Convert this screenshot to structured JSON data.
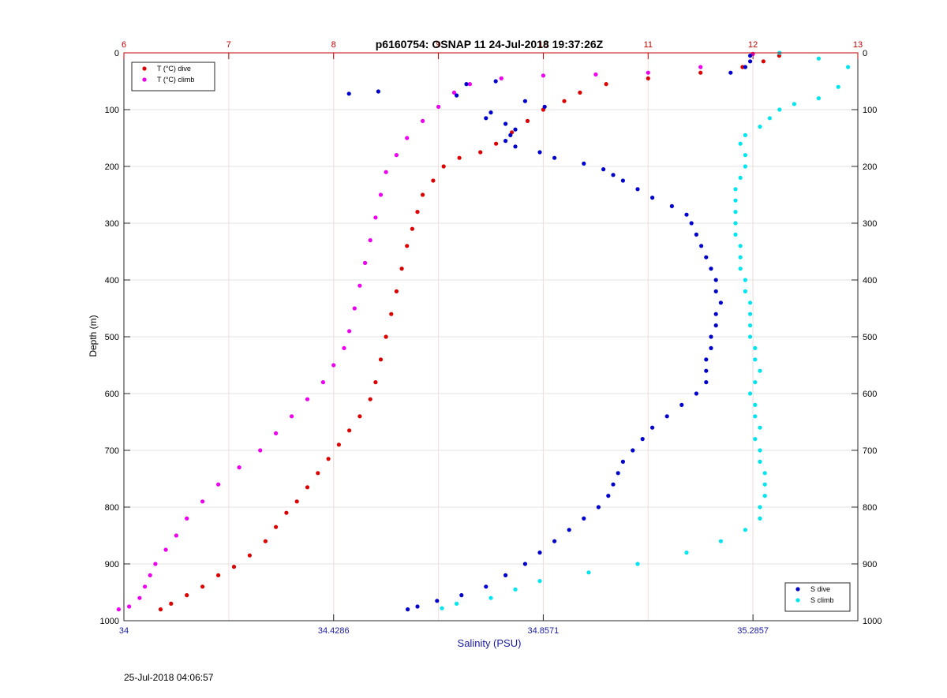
{
  "timestamp": "25-Jul-2018 04:06:57",
  "chart_data": {
    "type": "scatter",
    "title": "p6160754: OSNAP 11 24-Jul-2018 19:37:26Z",
    "xlabel": "Salinity (PSU)",
    "ylabel": "Depth (m)",
    "x_axis": {
      "ylim_note": "bottom",
      "lim": [
        34,
        35.5
      ],
      "ticks": [
        34,
        34.4286,
        34.8571,
        35.2857
      ],
      "tick_labels": [
        "34",
        "34.4286",
        "34.8571",
        "35.2857"
      ],
      "color": "#1a1aa0"
    },
    "x2_axis": {
      "lim": [
        6,
        13
      ],
      "ticks": [
        6,
        7,
        8,
        9,
        10,
        11,
        12,
        13
      ],
      "tick_labels": [
        "6",
        "7",
        "8",
        "9",
        "10",
        "11",
        "12",
        "13"
      ],
      "color": "#c00000"
    },
    "y_axis": {
      "lim": [
        0,
        1000
      ],
      "reversed": true,
      "ticks": [
        0,
        100,
        200,
        300,
        400,
        500,
        600,
        700,
        800,
        900,
        1000
      ],
      "tick_labels": [
        "0",
        "100",
        "200",
        "300",
        "400",
        "500",
        "600",
        "700",
        "800",
        "900",
        "1000"
      ]
    },
    "grid": true,
    "legends": [
      {
        "placement": "top-left",
        "entries": [
          {
            "label": "T (°C) dive",
            "color": "#dd0000"
          },
          {
            "label": "T (°C) climb",
            "color": "#ee00ee"
          }
        ]
      },
      {
        "placement": "bottom-right",
        "entries": [
          {
            "label": "S dive",
            "color": "#0000cc"
          },
          {
            "label": "S climb",
            "color": "#00e5ee"
          }
        ]
      }
    ],
    "series": [
      {
        "name": "T (°C) dive",
        "axis": "top",
        "color": "#dd0000",
        "points": [
          [
            12.25,
            5
          ],
          [
            12.1,
            15
          ],
          [
            11.9,
            25
          ],
          [
            11.5,
            35
          ],
          [
            11.0,
            45
          ],
          [
            10.6,
            55
          ],
          [
            10.35,
            70
          ],
          [
            10.2,
            85
          ],
          [
            10.0,
            100
          ],
          [
            9.85,
            120
          ],
          [
            9.7,
            140
          ],
          [
            9.55,
            160
          ],
          [
            9.4,
            175
          ],
          [
            9.2,
            185
          ],
          [
            9.05,
            200
          ],
          [
            8.95,
            225
          ],
          [
            8.85,
            250
          ],
          [
            8.8,
            280
          ],
          [
            8.75,
            310
          ],
          [
            8.7,
            340
          ],
          [
            8.65,
            380
          ],
          [
            8.6,
            420
          ],
          [
            8.55,
            460
          ],
          [
            8.5,
            500
          ],
          [
            8.45,
            540
          ],
          [
            8.4,
            580
          ],
          [
            8.35,
            610
          ],
          [
            8.25,
            640
          ],
          [
            8.15,
            665
          ],
          [
            8.05,
            690
          ],
          [
            7.95,
            715
          ],
          [
            7.85,
            740
          ],
          [
            7.75,
            765
          ],
          [
            7.65,
            790
          ],
          [
            7.55,
            810
          ],
          [
            7.45,
            835
          ],
          [
            7.35,
            860
          ],
          [
            7.2,
            885
          ],
          [
            7.05,
            905
          ],
          [
            6.9,
            920
          ],
          [
            6.75,
            940
          ],
          [
            6.6,
            955
          ],
          [
            6.45,
            970
          ],
          [
            6.35,
            980
          ]
        ]
      },
      {
        "name": "T (°C) climb",
        "axis": "top",
        "color": "#ee00ee",
        "points": [
          [
            12.0,
            2
          ],
          [
            11.5,
            25
          ],
          [
            11.0,
            35
          ],
          [
            10.5,
            38
          ],
          [
            10.0,
            40
          ],
          [
            9.6,
            45
          ],
          [
            9.3,
            55
          ],
          [
            9.15,
            70
          ],
          [
            9.0,
            95
          ],
          [
            8.85,
            120
          ],
          [
            8.7,
            150
          ],
          [
            8.6,
            180
          ],
          [
            8.5,
            210
          ],
          [
            8.45,
            250
          ],
          [
            8.4,
            290
          ],
          [
            8.35,
            330
          ],
          [
            8.3,
            370
          ],
          [
            8.25,
            410
          ],
          [
            8.2,
            450
          ],
          [
            8.15,
            490
          ],
          [
            8.1,
            520
          ],
          [
            8.0,
            550
          ],
          [
            7.9,
            580
          ],
          [
            7.75,
            610
          ],
          [
            7.6,
            640
          ],
          [
            7.45,
            670
          ],
          [
            7.3,
            700
          ],
          [
            7.1,
            730
          ],
          [
            6.9,
            760
          ],
          [
            6.75,
            790
          ],
          [
            6.6,
            820
          ],
          [
            6.5,
            850
          ],
          [
            6.4,
            875
          ],
          [
            6.3,
            900
          ],
          [
            6.25,
            920
          ],
          [
            6.2,
            940
          ],
          [
            6.15,
            960
          ],
          [
            6.05,
            975
          ],
          [
            5.95,
            980
          ]
        ]
      },
      {
        "name": "S dive",
        "axis": "bottom",
        "color": "#0000cc",
        "points": [
          [
            35.28,
            5
          ],
          [
            35.28,
            15
          ],
          [
            35.27,
            25
          ],
          [
            35.24,
            35
          ],
          [
            34.76,
            50
          ],
          [
            34.7,
            55
          ],
          [
            34.52,
            68
          ],
          [
            34.46,
            72
          ],
          [
            34.68,
            75
          ],
          [
            34.82,
            85
          ],
          [
            34.86,
            95
          ],
          [
            34.75,
            105
          ],
          [
            34.74,
            115
          ],
          [
            34.78,
            125
          ],
          [
            34.8,
            135
          ],
          [
            34.79,
            145
          ],
          [
            34.78,
            155
          ],
          [
            34.8,
            165
          ],
          [
            34.85,
            175
          ],
          [
            34.88,
            185
          ],
          [
            34.94,
            195
          ],
          [
            34.98,
            205
          ],
          [
            35.0,
            215
          ],
          [
            35.02,
            225
          ],
          [
            35.05,
            240
          ],
          [
            35.08,
            255
          ],
          [
            35.12,
            270
          ],
          [
            35.15,
            285
          ],
          [
            35.16,
            300
          ],
          [
            35.17,
            320
          ],
          [
            35.18,
            340
          ],
          [
            35.19,
            360
          ],
          [
            35.2,
            380
          ],
          [
            35.21,
            400
          ],
          [
            35.21,
            420
          ],
          [
            35.22,
            440
          ],
          [
            35.21,
            460
          ],
          [
            35.21,
            480
          ],
          [
            35.2,
            500
          ],
          [
            35.2,
            520
          ],
          [
            35.19,
            540
          ],
          [
            35.19,
            560
          ],
          [
            35.19,
            580
          ],
          [
            35.17,
            600
          ],
          [
            35.14,
            620
          ],
          [
            35.11,
            640
          ],
          [
            35.08,
            660
          ],
          [
            35.06,
            680
          ],
          [
            35.04,
            700
          ],
          [
            35.02,
            720
          ],
          [
            35.01,
            740
          ],
          [
            35.0,
            760
          ],
          [
            34.99,
            780
          ],
          [
            34.97,
            800
          ],
          [
            34.94,
            820
          ],
          [
            34.91,
            840
          ],
          [
            34.88,
            860
          ],
          [
            34.85,
            880
          ],
          [
            34.82,
            900
          ],
          [
            34.78,
            920
          ],
          [
            34.74,
            940
          ],
          [
            34.69,
            955
          ],
          [
            34.64,
            965
          ],
          [
            34.6,
            975
          ],
          [
            34.58,
            980
          ]
        ]
      },
      {
        "name": "S climb",
        "axis": "bottom",
        "color": "#00e5ee",
        "points": [
          [
            35.34,
            0
          ],
          [
            35.42,
            10
          ],
          [
            35.48,
            25
          ],
          [
            35.46,
            60
          ],
          [
            35.42,
            80
          ],
          [
            35.37,
            90
          ],
          [
            35.34,
            100
          ],
          [
            35.32,
            115
          ],
          [
            35.3,
            130
          ],
          [
            35.27,
            145
          ],
          [
            35.26,
            160
          ],
          [
            35.27,
            180
          ],
          [
            35.27,
            200
          ],
          [
            35.26,
            220
          ],
          [
            35.25,
            240
          ],
          [
            35.25,
            260
          ],
          [
            35.25,
            280
          ],
          [
            35.25,
            300
          ],
          [
            35.25,
            320
          ],
          [
            35.26,
            340
          ],
          [
            35.26,
            360
          ],
          [
            35.26,
            380
          ],
          [
            35.27,
            400
          ],
          [
            35.27,
            420
          ],
          [
            35.28,
            440
          ],
          [
            35.28,
            460
          ],
          [
            35.28,
            480
          ],
          [
            35.28,
            500
          ],
          [
            35.29,
            520
          ],
          [
            35.29,
            540
          ],
          [
            35.3,
            560
          ],
          [
            35.29,
            580
          ],
          [
            35.28,
            600
          ],
          [
            35.29,
            620
          ],
          [
            35.29,
            640
          ],
          [
            35.3,
            660
          ],
          [
            35.29,
            680
          ],
          [
            35.3,
            700
          ],
          [
            35.3,
            720
          ],
          [
            35.31,
            740
          ],
          [
            35.31,
            760
          ],
          [
            35.31,
            780
          ],
          [
            35.3,
            800
          ],
          [
            35.3,
            820
          ],
          [
            35.27,
            840
          ],
          [
            35.22,
            860
          ],
          [
            35.15,
            880
          ],
          [
            35.05,
            900
          ],
          [
            34.95,
            915
          ],
          [
            34.85,
            930
          ],
          [
            34.8,
            945
          ],
          [
            34.75,
            960
          ],
          [
            34.68,
            970
          ],
          [
            34.65,
            978
          ]
        ]
      }
    ]
  }
}
